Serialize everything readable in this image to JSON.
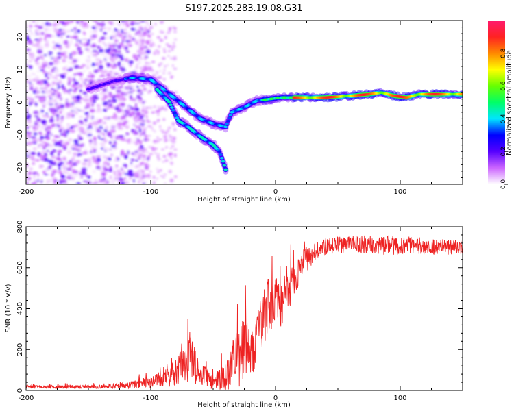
{
  "figure_title": "S197.2025.283.19.08.G31",
  "chart_data": [
    {
      "type": "heatmap",
      "title": "S197.2025.283.19.08.G31",
      "xlabel": "Height of straight line (km)",
      "ylabel": "Frequency (Hz)",
      "xlim": [
        -200,
        150
      ],
      "ylim": [
        -25,
        25
      ],
      "xticks": [
        -200,
        -100,
        0,
        100
      ],
      "yticks": [
        -20,
        -10,
        0,
        10,
        20
      ],
      "colorbar": {
        "label": "Normalized spectral amplitude",
        "range": [
          0,
          1
        ],
        "ticks": [
          0.0,
          0.2,
          0.4,
          0.6,
          0.8
        ],
        "tick_labels": [
          "0.0",
          "0.2",
          "0.4",
          "0.6",
          "0.8"
        ],
        "colors": [
          "#ffffff",
          "#cc66ff",
          "#5500ff",
          "#0000ff",
          "#00e5ff",
          "#00ff66",
          "#66ff00",
          "#ffff00",
          "#ff8800",
          "#ff2222",
          "#ff1a6e"
        ]
      },
      "ridges": [
        {
          "name": "main-trace",
          "points": [
            [
              -150,
              4
            ],
            [
              -130,
              6.5
            ],
            [
              -115,
              7.5
            ],
            [
              -100,
              7
            ],
            [
              -90,
              4
            ],
            [
              -80,
              1
            ],
            [
              -70,
              -2
            ],
            [
              -60,
              -5
            ],
            [
              -50,
              -6.5
            ],
            [
              -40,
              -7.5
            ],
            [
              -35,
              -3
            ],
            [
              -25,
              -1.5
            ],
            [
              -15,
              0.5
            ],
            [
              -5,
              1
            ],
            [
              5,
              1.5
            ],
            [
              20,
              1.5
            ],
            [
              40,
              1.5
            ],
            [
              60,
              2
            ],
            [
              75,
              2.5
            ],
            [
              85,
              3
            ],
            [
              95,
              2
            ],
            [
              105,
              1.5
            ],
            [
              115,
              2.5
            ],
            [
              130,
              2.5
            ],
            [
              150,
              2.5
            ]
          ]
        },
        {
          "name": "secondary-trace",
          "points": [
            [
              -95,
              4
            ],
            [
              -85,
              0
            ],
            [
              -78,
              -5.5
            ],
            [
              -70,
              -7.5
            ],
            [
              -60,
              -10.5
            ],
            [
              -50,
              -13
            ],
            [
              -45,
              -15
            ],
            [
              -42,
              -18
            ],
            [
              -40,
              -20.5
            ]
          ]
        }
      ]
    },
    {
      "type": "line",
      "xlabel": "Height of straight line (km)",
      "ylabel": "SNR (10 * v/v)",
      "xlim": [
        -200,
        150
      ],
      "ylim": [
        0,
        800
      ],
      "xticks": [
        -200,
        -100,
        0,
        100
      ],
      "yticks": [
        0,
        200,
        400,
        600,
        800
      ],
      "color": "#ee2222",
      "series": [
        {
          "name": "SNR",
          "envelope": [
            {
              "x": -200,
              "base": 15,
              "amp": 15
            },
            {
              "x": -150,
              "base": 15,
              "amp": 15
            },
            {
              "x": -120,
              "base": 20,
              "amp": 25
            },
            {
              "x": -100,
              "base": 30,
              "amp": 55
            },
            {
              "x": -85,
              "base": 50,
              "amp": 90
            },
            {
              "x": -75,
              "base": 90,
              "amp": 160
            },
            {
              "x": -68,
              "base": 110,
              "amp": 210
            },
            {
              "x": -60,
              "base": 60,
              "amp": 110
            },
            {
              "x": -50,
              "base": 30,
              "amp": 60
            },
            {
              "x": -40,
              "base": 40,
              "amp": 130
            },
            {
              "x": -30,
              "base": 120,
              "amp": 300
            },
            {
              "x": -25,
              "base": 140,
              "amp": 330
            },
            {
              "x": -20,
              "base": 130,
              "amp": 200
            },
            {
              "x": -10,
              "base": 300,
              "amp": 260
            },
            {
              "x": -5,
              "base": 380,
              "amp": 250
            },
            {
              "x": 5,
              "base": 400,
              "amp": 220
            },
            {
              "x": 15,
              "base": 520,
              "amp": 150
            },
            {
              "x": 25,
              "base": 640,
              "amp": 100
            },
            {
              "x": 40,
              "base": 705,
              "amp": 70
            },
            {
              "x": 60,
              "base": 715,
              "amp": 70
            },
            {
              "x": 90,
              "base": 710,
              "amp": 80
            },
            {
              "x": 120,
              "base": 705,
              "amp": 70
            },
            {
              "x": 150,
              "base": 700,
              "amp": 60
            }
          ]
        }
      ]
    }
  ]
}
